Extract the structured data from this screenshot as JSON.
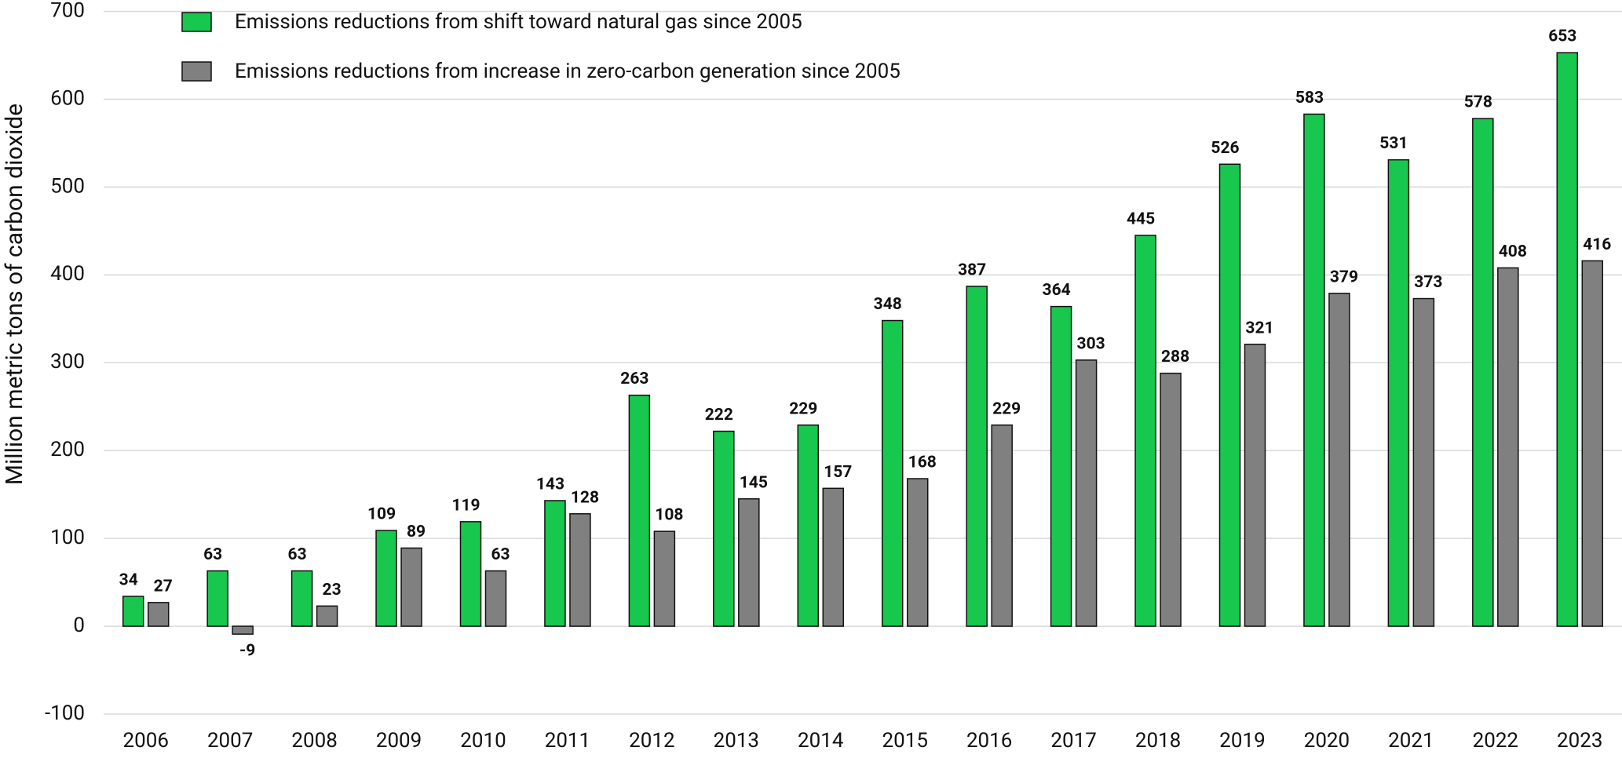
{
  "chart_data": {
    "type": "bar",
    "y_axis_label": "Million metric tons of carbon dioxide",
    "categories": [
      "2006",
      "2007",
      "2008",
      "2009",
      "2010",
      "2011",
      "2012",
      "2013",
      "2014",
      "2015",
      "2016",
      "2017",
      "2018",
      "2019",
      "2020",
      "2021",
      "2022",
      "2023"
    ],
    "series": [
      {
        "name": "Emissions reductions from shift toward natural gas since 2005",
        "color": "#17c74e",
        "values": [
          34,
          63,
          63,
          109,
          119,
          143,
          263,
          222,
          229,
          348,
          387,
          364,
          445,
          526,
          583,
          531,
          578,
          653
        ]
      },
      {
        "name": "Emissions reductions from increase in zero-carbon generation since 2005",
        "color": "#808080",
        "values": [
          27,
          -9,
          23,
          89,
          63,
          128,
          108,
          145,
          157,
          168,
          229,
          303,
          288,
          321,
          379,
          373,
          408,
          416
        ]
      }
    ],
    "ylim": [
      -100,
      700
    ],
    "yticks": [
      -100,
      0,
      100,
      200,
      300,
      400,
      500,
      600,
      700
    ],
    "grid": true,
    "legend": "top-left"
  }
}
